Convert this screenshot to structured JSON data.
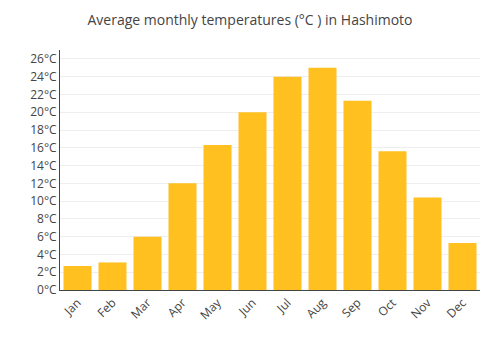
{
  "chart_data": {
    "type": "bar",
    "title": "Average monthly temperatures (°C ) in Hashimoto",
    "categories": [
      "Jan",
      "Feb",
      "Mar",
      "Apr",
      "May",
      "Jun",
      "Jul",
      "Aug",
      "Sep",
      "Oct",
      "Nov",
      "Dec"
    ],
    "values": [
      2.7,
      3.1,
      6.0,
      12.0,
      16.3,
      20.0,
      24.0,
      25.0,
      21.3,
      15.6,
      10.4,
      5.3
    ],
    "color": "#FFC020",
    "ylim": [
      0,
      27
    ],
    "yticks": [
      {
        "value": 0,
        "label": "0°C"
      },
      {
        "value": 2,
        "label": "2°C"
      },
      {
        "value": 4,
        "label": "4°C"
      },
      {
        "value": 6,
        "label": "6°C"
      },
      {
        "value": 8,
        "label": "8°C"
      },
      {
        "value": 10,
        "label": "10°C"
      },
      {
        "value": 12,
        "label": "12°C"
      },
      {
        "value": 14,
        "label": "14°C"
      },
      {
        "value": 16,
        "label": "16°C"
      },
      {
        "value": 18,
        "label": "18°C"
      },
      {
        "value": 20,
        "label": "20°C"
      },
      {
        "value": 22,
        "label": "22°C"
      },
      {
        "value": 24,
        "label": "24°C"
      },
      {
        "value": 26,
        "label": "26°C"
      }
    ],
    "grid": true
  }
}
